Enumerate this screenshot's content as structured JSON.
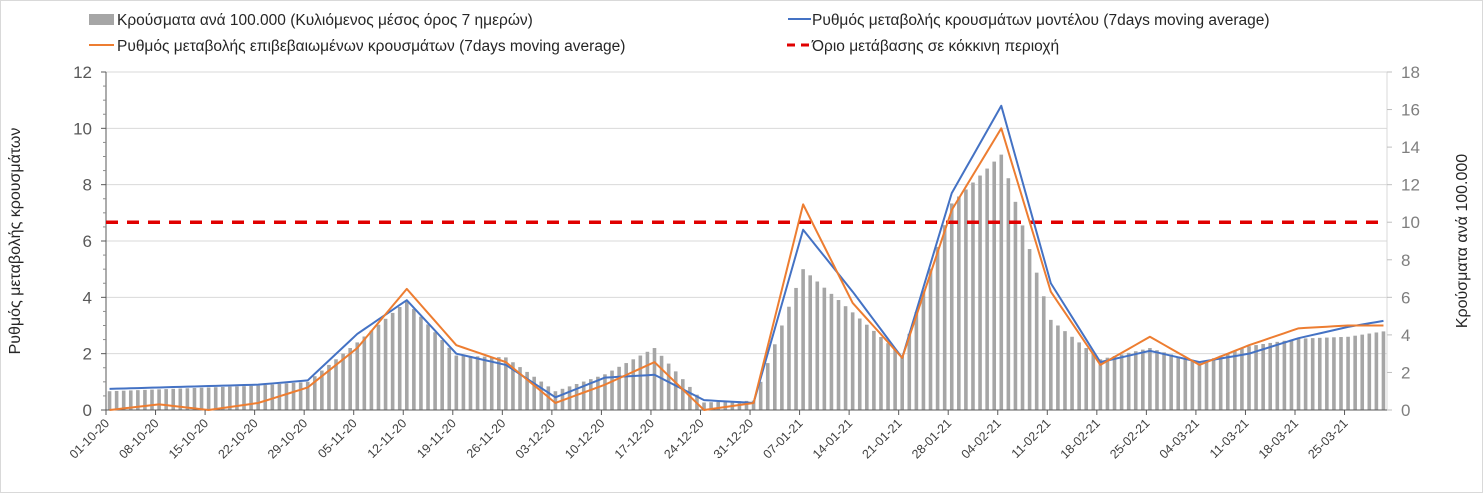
{
  "chart_data": {
    "type": "bar+line",
    "legend": {
      "placement": "top",
      "items": [
        {
          "id": "bars",
          "label": "Κρούσματα ανά 100.000 (Κυλιόμενος μέσος όρος 7 ημερών)",
          "color": "#a6a6a6",
          "kind": "bar"
        },
        {
          "id": "model",
          "label": "Ρυθμός μεταβολής κρουσμάτων μοντέλου (7days moving average)",
          "color": "#4472c4",
          "kind": "line"
        },
        {
          "id": "confirmed",
          "label": "Ρυθμός μεταβολής επιβεβαιωμένων κρουσμάτων (7days moving average)",
          "color": "#ed7d31",
          "kind": "line"
        },
        {
          "id": "threshold",
          "label": "Όριο μετάβασης σε κόκκινη περιοχή",
          "color": "#e00000",
          "kind": "dashed"
        }
      ]
    },
    "ylabel_left": "Ρυθμός μεταβολής κρουσμάτων",
    "ylabel_right": "Κρούσματα ανά 100.000",
    "ylim_left": [
      0,
      12
    ],
    "ylim_right": [
      0,
      18
    ],
    "yticks_left": [
      "0",
      "2",
      "4",
      "6",
      "8",
      "10",
      "12"
    ],
    "yticks_right": [
      "0",
      "2",
      "4",
      "6",
      "8",
      "10",
      "12",
      "14",
      "16",
      "18"
    ],
    "grid": true,
    "threshold_right_axis": 10,
    "start_date": "01-10-20",
    "days": 181,
    "xtick_labels": [
      "01-10-20",
      "08-10-20",
      "15-10-20",
      "22-10-20",
      "29-10-20",
      "05-11-20",
      "12-11-20",
      "19-11-20",
      "26-11-20",
      "03-12-20",
      "10-12-20",
      "17-12-20",
      "24-12-20",
      "31-12-20",
      "07-01-21",
      "14-01-21",
      "21-01-21",
      "28-01-21",
      "04-02-21",
      "11-02-21",
      "18-02-21",
      "25-02-21",
      "04-03-21",
      "11-03-21",
      "18-03-21",
      "25-03-21"
    ],
    "bars_weekly_anchor": [
      1.0,
      1.1,
      1.2,
      1.3,
      1.5,
      3.6,
      5.8,
      2.9,
      2.8,
      1.0,
      1.9,
      3.3,
      0.4,
      0.5,
      7.5,
      5.2,
      2.9,
      11.0,
      13.6,
      4.8,
      2.7,
      3.3,
      2.5,
      3.4,
      3.8,
      3.9,
      4.3
    ],
    "model_weekly_anchor": [
      0.75,
      0.8,
      0.85,
      0.9,
      1.05,
      2.7,
      3.9,
      2.0,
      1.6,
      0.45,
      1.15,
      1.25,
      0.35,
      0.25,
      6.4,
      4.2,
      1.85,
      7.7,
      10.8,
      4.5,
      1.7,
      2.1,
      1.7,
      2.0,
      2.55,
      2.95,
      3.25
    ],
    "confirmed_weekly_anchor": [
      0.0,
      0.2,
      0.0,
      0.25,
      0.8,
      2.2,
      4.3,
      2.3,
      1.7,
      0.25,
      0.9,
      1.7,
      0.0,
      0.25,
      7.3,
      3.8,
      1.85,
      7.1,
      10.0,
      4.2,
      1.6,
      2.6,
      1.6,
      2.3,
      2.9,
      3.0,
      3.0
    ]
  }
}
